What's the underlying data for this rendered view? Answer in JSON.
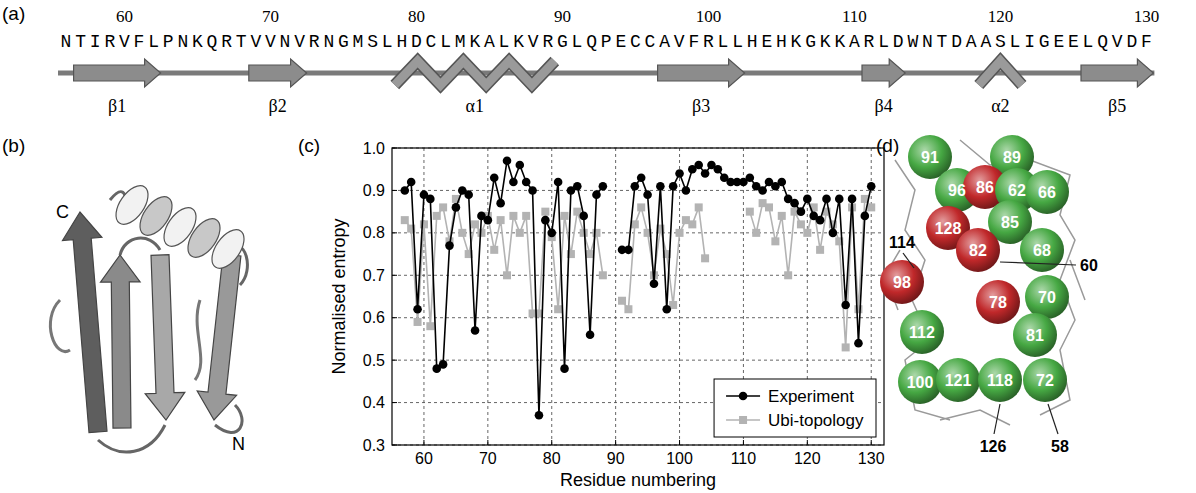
{
  "panel_labels": [
    "(a)",
    "(b)",
    "(c)",
    "(d)"
  ],
  "sequence_panel": {
    "first_residue": 56,
    "sequence": "NTIRVFLPNKQRTVVNVRNGMSLHDCLMKALKVRGLQPECCAVFRLLHEHKGKKARLDWNTDAASLIGEELQVDF",
    "ticks": [
      60,
      70,
      80,
      90,
      100,
      110,
      120,
      130
    ],
    "elements": [
      {
        "label": "β1",
        "type": "strand",
        "start": 57,
        "end": 62
      },
      {
        "label": "β2",
        "type": "strand",
        "start": 69,
        "end": 72
      },
      {
        "label": "α1",
        "type": "helix",
        "start": 79,
        "end": 89
      },
      {
        "label": "β3",
        "type": "strand",
        "start": 97,
        "end": 102
      },
      {
        "label": "β4",
        "type": "strand",
        "start": 111,
        "end": 113
      },
      {
        "label": "α2",
        "type": "helix",
        "start": 119,
        "end": 121
      },
      {
        "label": "β5",
        "type": "strand",
        "start": 126,
        "end": 130
      }
    ]
  },
  "structure_panel": {
    "termini": [
      "C",
      "N"
    ]
  },
  "chart_data": {
    "type": "line",
    "xlabel": "Residue numbering",
    "ylabel": "Normalised entropy",
    "x": [
      57,
      58,
      59,
      60,
      61,
      62,
      63,
      64,
      65,
      66,
      67,
      68,
      69,
      70,
      71,
      72,
      73,
      74,
      75,
      76,
      77,
      78,
      79,
      80,
      81,
      82,
      83,
      84,
      85,
      86,
      87,
      88,
      89,
      90,
      91,
      92,
      93,
      94,
      95,
      96,
      97,
      98,
      99,
      100,
      101,
      102,
      103,
      104,
      105,
      106,
      107,
      108,
      109,
      110,
      111,
      112,
      113,
      114,
      115,
      116,
      117,
      118,
      119,
      120,
      121,
      122,
      123,
      124,
      125,
      126,
      127,
      128,
      129,
      130
    ],
    "series": [
      {
        "name": "Experiment",
        "color": "#000000",
        "marker": "circle",
        "values": [
          0.9,
          0.92,
          0.62,
          0.89,
          0.88,
          0.48,
          0.49,
          0.77,
          0.86,
          0.9,
          0.89,
          0.57,
          0.84,
          0.83,
          0.93,
          0.87,
          0.97,
          0.92,
          0.96,
          0.92,
          0.9,
          0.37,
          0.83,
          0.8,
          0.92,
          0.48,
          0.9,
          0.91,
          0.84,
          0.56,
          0.89,
          0.91,
          null,
          null,
          0.76,
          0.76,
          0.91,
          0.93,
          0.89,
          0.68,
          0.91,
          0.62,
          0.91,
          0.94,
          0.9,
          0.95,
          0.96,
          0.94,
          0.96,
          0.95,
          0.93,
          0.92,
          0.92,
          0.92,
          0.93,
          0.91,
          0.9,
          0.92,
          0.91,
          0.92,
          0.88,
          0.87,
          0.85,
          0.88,
          0.84,
          0.83,
          0.88,
          0.8,
          0.88,
          0.63,
          0.88,
          0.54,
          0.84,
          0.91
        ]
      },
      {
        "name": "Ubi-topology",
        "color": "#b3b3b3",
        "marker": "square",
        "values": [
          0.83,
          0.81,
          0.59,
          0.82,
          0.58,
          0.84,
          0.86,
          0.78,
          0.88,
          0.8,
          0.75,
          0.82,
          0.8,
          0.84,
          0.76,
          0.83,
          0.7,
          0.84,
          0.8,
          0.84,
          0.61,
          0.61,
          0.85,
          0.79,
          0.62,
          0.84,
          0.75,
          0.85,
          0.8,
          0.75,
          0.8,
          0.7,
          null,
          null,
          0.64,
          0.62,
          0.82,
          0.86,
          0.8,
          0.7,
          0.81,
          0.75,
          0.63,
          0.8,
          0.83,
          0.82,
          0.86,
          0.74,
          null,
          null,
          null,
          null,
          null,
          null,
          0.85,
          0.8,
          0.87,
          0.86,
          0.78,
          0.84,
          0.7,
          0.85,
          0.82,
          0.8,
          0.86,
          0.76,
          0.85,
          0.82,
          0.78,
          0.53,
          0.86,
          0.62,
          0.88,
          0.86
        ]
      }
    ],
    "xlim": [
      55,
      132
    ],
    "ylim": [
      0.3,
      1.0
    ],
    "xticks": [
      60,
      70,
      80,
      90,
      100,
      110,
      120,
      130
    ],
    "yticks": [
      0.3,
      0.4,
      0.5,
      0.6,
      0.7,
      0.8,
      0.9,
      {
        "value": 1.0,
        "label": "1.0"
      }
    ],
    "grid": true,
    "legend": "lower right"
  },
  "sphere_panel": {
    "spheres": [
      {
        "label": "91",
        "color": "#46a843"
      },
      {
        "label": "89",
        "color": "#46a843"
      },
      {
        "label": "96",
        "color": "#46a843"
      },
      {
        "label": "86",
        "color": "#c0282a"
      },
      {
        "label": "62",
        "color": "#46a843"
      },
      {
        "label": "66",
        "color": "#46a843"
      },
      {
        "label": "85",
        "color": "#46a843"
      },
      {
        "label": "128",
        "color": "#c0282a"
      },
      {
        "label": "82",
        "color": "#c0282a"
      },
      {
        "label": "68",
        "color": "#46a843"
      },
      {
        "label": "98",
        "color": "#c0282a"
      },
      {
        "label": "70",
        "color": "#46a843"
      },
      {
        "label": "78",
        "color": "#c0282a"
      },
      {
        "label": "81",
        "color": "#46a843"
      },
      {
        "label": "112",
        "color": "#46a843"
      },
      {
        "label": "100",
        "color": "#46a843"
      },
      {
        "label": "121",
        "color": "#46a843"
      },
      {
        "label": "118",
        "color": "#46a843"
      },
      {
        "label": "72",
        "color": "#46a843"
      }
    ],
    "callouts": [
      "114",
      "60",
      "126",
      "58"
    ]
  }
}
